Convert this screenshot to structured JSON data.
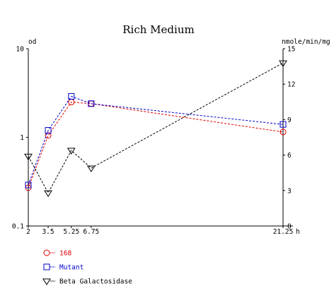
{
  "chart_data": {
    "type": "line",
    "title": "Rich Medium",
    "x": [
      2,
      3.5,
      5.25,
      6.75,
      21.25
    ],
    "x_ticks": [
      2,
      3.5,
      5.25,
      6.75,
      21.25
    ],
    "x_tick_labels": [
      "2",
      "3.5",
      "5.25",
      "6.75",
      "21.25"
    ],
    "x_unit": "h",
    "xlim": [
      2,
      21.25
    ],
    "y_left": {
      "label": "od",
      "scale": "log",
      "ylim": [
        0.1,
        10
      ],
      "ticks": [
        0.1,
        1,
        10
      ],
      "tick_labels": [
        "0.1",
        "1",
        "10"
      ]
    },
    "y_right": {
      "label": "nmole/min/mg",
      "scale": "linear",
      "ylim": [
        0,
        15
      ],
      "ticks": [
        0,
        3,
        6,
        9,
        12,
        15
      ],
      "tick_labels": [
        "0",
        "3",
        "6",
        "9",
        "12",
        "15"
      ]
    },
    "grid": false,
    "legend_position": "bottom-left",
    "series": [
      {
        "name": "168",
        "axis": "left",
        "color": "#e00000",
        "marker": "circle",
        "values": [
          0.27,
          1.05,
          2.5,
          2.4,
          1.15
        ]
      },
      {
        "name": "Mutant",
        "axis": "left",
        "color": "#0000cc",
        "marker": "square",
        "values": [
          0.29,
          1.2,
          2.9,
          2.4,
          1.4
        ]
      },
      {
        "name": "Beta Galactosidase",
        "axis": "right",
        "color": "#000000",
        "marker": "triangle-down",
        "values": [
          5.9,
          2.8,
          6.4,
          4.9,
          13.8
        ]
      }
    ]
  }
}
